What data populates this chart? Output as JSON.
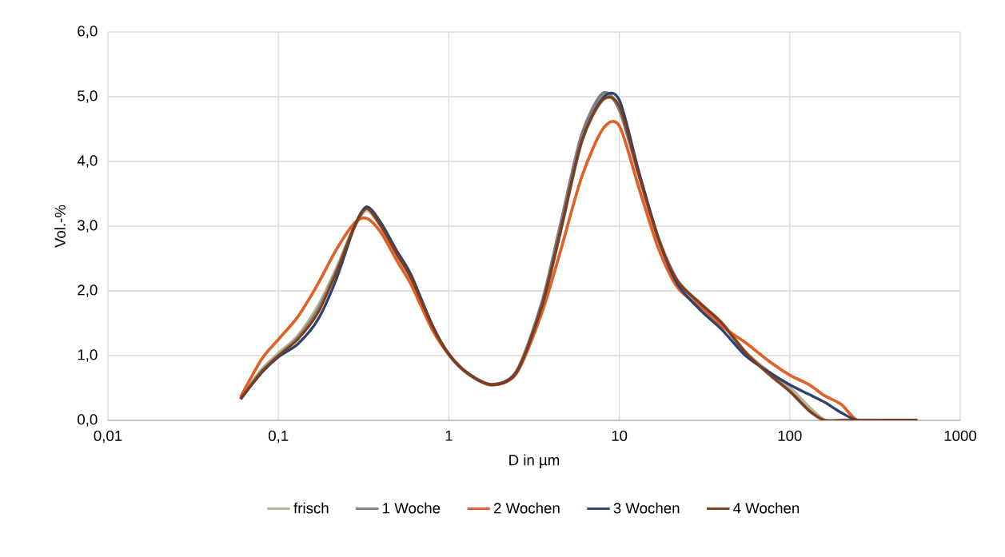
{
  "chart_data": {
    "type": "line",
    "xlabel": "D in µm",
    "ylabel": "Vol.-%",
    "log": "x",
    "grid": true,
    "legend": "bottom",
    "marker": "none",
    "line_style": "solid",
    "xlim": [
      0.01,
      1000
    ],
    "ylim": [
      0,
      6
    ],
    "xticks": [
      {
        "value": 0.01,
        "label": "0,01"
      },
      {
        "value": 0.1,
        "label": "0,1"
      },
      1,
      10,
      100,
      1000
    ],
    "yticks": [
      {
        "value": 0,
        "label": "0,0"
      },
      {
        "value": 1,
        "label": "1,0"
      },
      {
        "value": 2,
        "label": "2,0"
      },
      {
        "value": 3,
        "label": "3,0"
      },
      {
        "value": 4,
        "label": "4,0"
      },
      {
        "value": 5,
        "label": "5,0"
      },
      {
        "value": 6,
        "label": "6,0"
      }
    ],
    "x": [
      0.06,
      0.08,
      0.1,
      0.13,
      0.17,
      0.22,
      0.28,
      0.33,
      0.4,
      0.5,
      0.6,
      0.8,
      1,
      1.3,
      1.8,
      2.5,
      3.5,
      4.5,
      6,
      8,
      10,
      13,
      17,
      22,
      30,
      40,
      55,
      75,
      100,
      130,
      160,
      200,
      250,
      350,
      560
    ],
    "series": [
      {
        "name": "frisch",
        "color": "#b5b794",
        "values": [
          0.33,
          0.78,
          1.03,
          1.3,
          1.75,
          2.35,
          3.0,
          3.25,
          3.0,
          2.55,
          2.2,
          1.45,
          1.02,
          0.72,
          0.55,
          0.75,
          1.75,
          2.9,
          4.3,
          4.95,
          4.85,
          3.8,
          2.8,
          2.15,
          1.8,
          1.5,
          1.05,
          0.75,
          0.5,
          0.2,
          0.0,
          0.0,
          0.0,
          0.0,
          0.0
        ]
      },
      {
        "name": "1 Woche",
        "color": "#7f7f7f",
        "values": [
          0.33,
          0.76,
          1.0,
          1.27,
          1.7,
          2.32,
          3.0,
          3.28,
          3.0,
          2.55,
          2.2,
          1.45,
          1.02,
          0.72,
          0.55,
          0.76,
          1.8,
          3.0,
          4.4,
          5.05,
          4.8,
          3.8,
          2.8,
          2.15,
          1.8,
          1.5,
          1.05,
          0.72,
          0.45,
          0.15,
          0.0,
          0.0,
          0.0,
          0.0,
          0.0
        ]
      },
      {
        "name": "2 Wochen",
        "color": "#e0602a",
        "values": [
          0.36,
          0.95,
          1.25,
          1.6,
          2.1,
          2.65,
          3.05,
          3.12,
          2.9,
          2.45,
          2.1,
          1.4,
          1.02,
          0.72,
          0.55,
          0.73,
          1.65,
          2.6,
          3.75,
          4.5,
          4.55,
          3.6,
          2.65,
          2.05,
          1.75,
          1.45,
          1.2,
          0.92,
          0.7,
          0.55,
          0.38,
          0.25,
          0.0,
          0.0,
          0.0
        ]
      },
      {
        "name": "3 Wochen",
        "color": "#2e4272",
        "values": [
          0.33,
          0.74,
          0.98,
          1.18,
          1.55,
          2.2,
          3.0,
          3.3,
          3.05,
          2.6,
          2.25,
          1.47,
          1.02,
          0.72,
          0.55,
          0.75,
          1.75,
          2.9,
          4.3,
          4.98,
          4.95,
          3.85,
          2.8,
          2.1,
          1.7,
          1.4,
          1.0,
          0.75,
          0.55,
          0.4,
          0.28,
          0.12,
          0.0,
          0.0,
          0.0
        ]
      },
      {
        "name": "4 Wochen",
        "color": "#843c16",
        "values": [
          0.33,
          0.75,
          1.0,
          1.25,
          1.65,
          2.3,
          3.0,
          3.27,
          3.0,
          2.55,
          2.2,
          1.45,
          1.02,
          0.72,
          0.55,
          0.75,
          1.75,
          2.9,
          4.3,
          4.95,
          4.85,
          3.8,
          2.8,
          2.15,
          1.8,
          1.5,
          1.05,
          0.72,
          0.45,
          0.15,
          0.0,
          0.0,
          0.0,
          0.0,
          0.0
        ]
      }
    ]
  }
}
